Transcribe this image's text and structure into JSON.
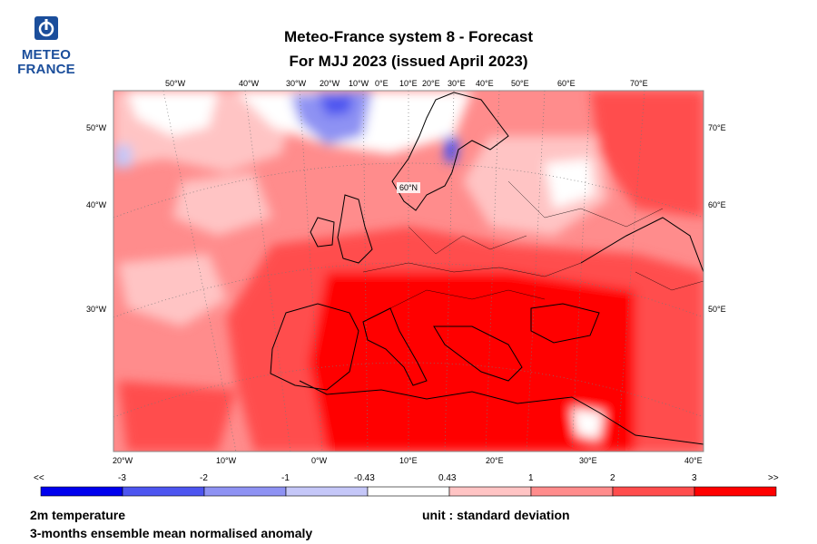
{
  "logo": {
    "line1": "METEO",
    "line2": "FRANCE"
  },
  "title": {
    "line1": "Meteo-France system 8  -  Forecast",
    "line2": "For MJJ 2023      (issued April 2023)"
  },
  "map": {
    "variable": "2m temperature",
    "statistic": "3-months ensemble mean normalised anomaly",
    "unit_label": "unit : standard deviation",
    "graticule_label": "60°N",
    "lon_top": [
      "50°W",
      "40°W",
      "30°W",
      "20°W",
      "10°W",
      "0°E",
      "10°E",
      "20°E",
      "30°E",
      "40°E",
      "50°E",
      "60°E",
      "70°E"
    ],
    "lon_bottom": [
      "20°W",
      "10°W",
      "0°W",
      "10°E",
      "20°E",
      "30°E",
      "40°E"
    ],
    "lat_left": [
      "50°W",
      "40°W",
      "30°W"
    ],
    "lat_right": [
      "70°E",
      "60°E",
      "50°E"
    ]
  },
  "colorbar": {
    "labels": [
      "<<",
      "-3",
      "-2",
      "-1",
      "-0.43",
      "0.43",
      "1",
      "2",
      "3",
      ">>"
    ],
    "colors": [
      "#0000ee",
      "#4d55f0",
      "#8e92f3",
      "#c5c7f8",
      "#ffffff",
      "#ffc4c4",
      "#ff8c8c",
      "#ff4d4d",
      "#ff0000"
    ]
  }
}
